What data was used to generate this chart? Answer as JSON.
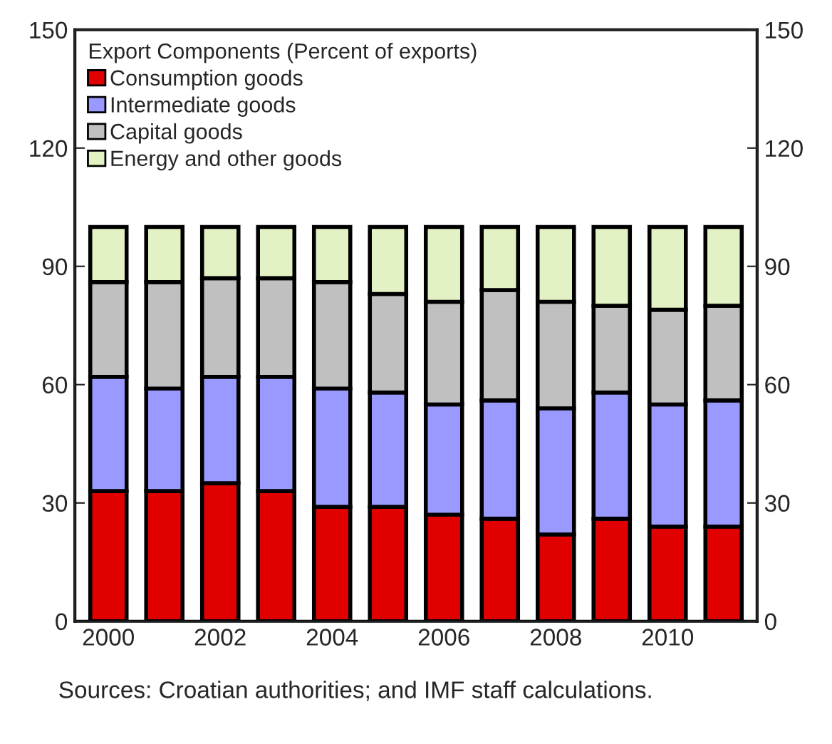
{
  "chart_data": {
    "type": "bar",
    "stacked": true,
    "legend_title": "Export Components (Percent of exports)",
    "categories": [
      "2000",
      null,
      "2002",
      null,
      "2004",
      null,
      "2006",
      null,
      "2008",
      null,
      "2010",
      null
    ],
    "series": [
      {
        "name": "Consumption goods",
        "color": "#e00000",
        "values": [
          33,
          33,
          35,
          33,
          29,
          29,
          27,
          26,
          22,
          26,
          24,
          24
        ]
      },
      {
        "name": "Intermediate goods",
        "color": "#9999ff",
        "values": [
          29,
          26,
          27,
          29,
          30,
          29,
          28,
          30,
          32,
          32,
          31,
          32
        ]
      },
      {
        "name": "Capital goods",
        "color": "#c0c0c0",
        "values": [
          24,
          27,
          25,
          25,
          27,
          25,
          26,
          28,
          27,
          22,
          24,
          24
        ]
      },
      {
        "name": "Energy and other goods",
        "color": "#e2f2c4",
        "values": [
          14,
          14,
          13,
          13,
          14,
          17,
          19,
          16,
          19,
          20,
          21,
          20
        ]
      }
    ],
    "ylim": [
      0,
      150
    ],
    "yticks": [
      0,
      30,
      60,
      90,
      120,
      150
    ],
    "y2lim": [
      0,
      150
    ],
    "y2ticks": [
      0,
      30,
      60,
      90,
      120,
      150
    ],
    "legend": "top left",
    "grid": false,
    "annotations": [
      "Sources: Croatian authorities; and IMF staff calculations."
    ]
  }
}
